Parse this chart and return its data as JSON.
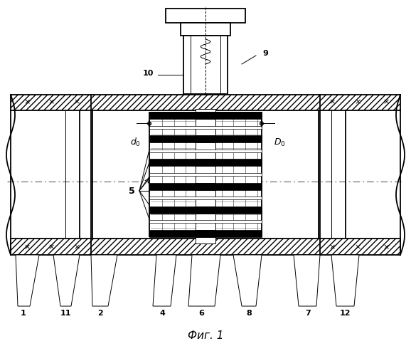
{
  "bg_color": "#ffffff",
  "lw1": 0.7,
  "lw2": 1.3,
  "lw3": 2.5,
  "fig_title": "Фиг. 1"
}
